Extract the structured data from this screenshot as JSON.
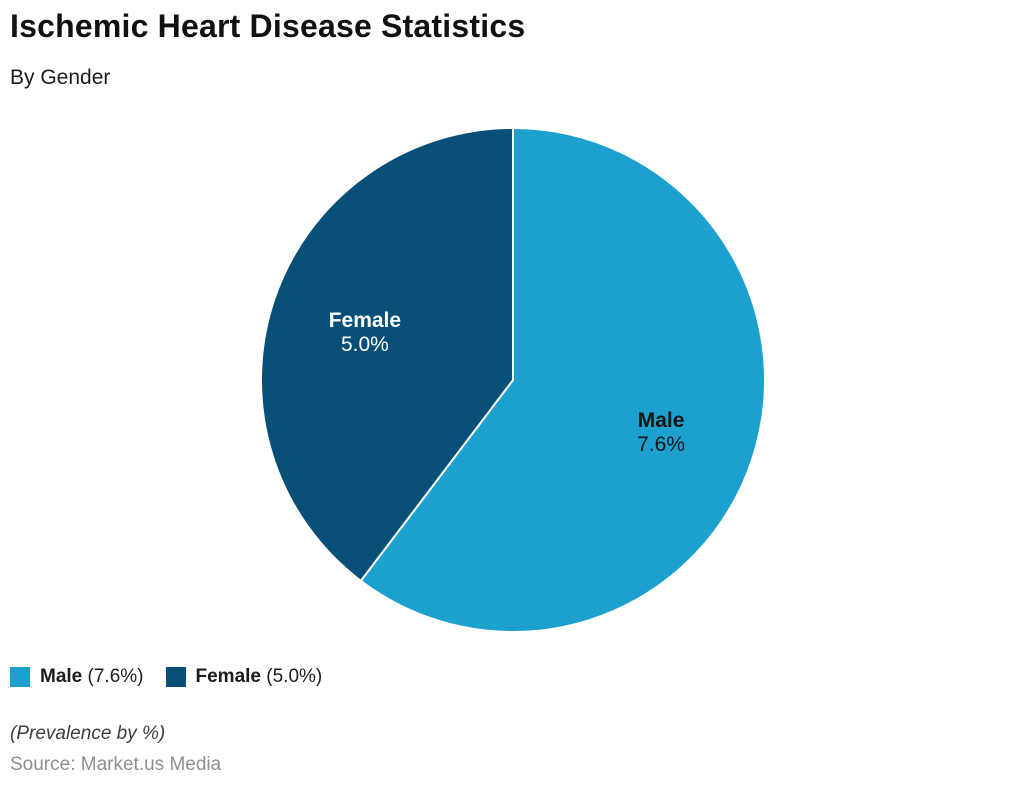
{
  "header": {
    "title": "Ischemic Heart Disease Statistics",
    "subtitle": "By Gender"
  },
  "chart_data": {
    "type": "pie",
    "title": "Ischemic Heart Disease Statistics",
    "subtitle": "By Gender",
    "unit": "Prevalence by %",
    "labels": [
      "Male",
      "Female"
    ],
    "values": [
      7.6,
      5.0
    ],
    "value_labels": [
      "7.6%",
      "5.0%"
    ],
    "slice_colors": [
      "#1CA0CE",
      "#084F78"
    ],
    "slice_label_colors": [
      "#161616",
      "#ffffff"
    ],
    "start_angle": "12-oclock",
    "direction": "clockwise",
    "legend_position": "bottom-left"
  },
  "legend": {
    "items": [
      {
        "name": "Male",
        "value_text": "(7.6%)",
        "color": "#1CA0CE"
      },
      {
        "name": "Female",
        "value_text": "(5.0%)",
        "color": "#084F78"
      }
    ]
  },
  "footer": {
    "note": "(Prevalence by %)",
    "source": "Source: Market.us Media"
  }
}
